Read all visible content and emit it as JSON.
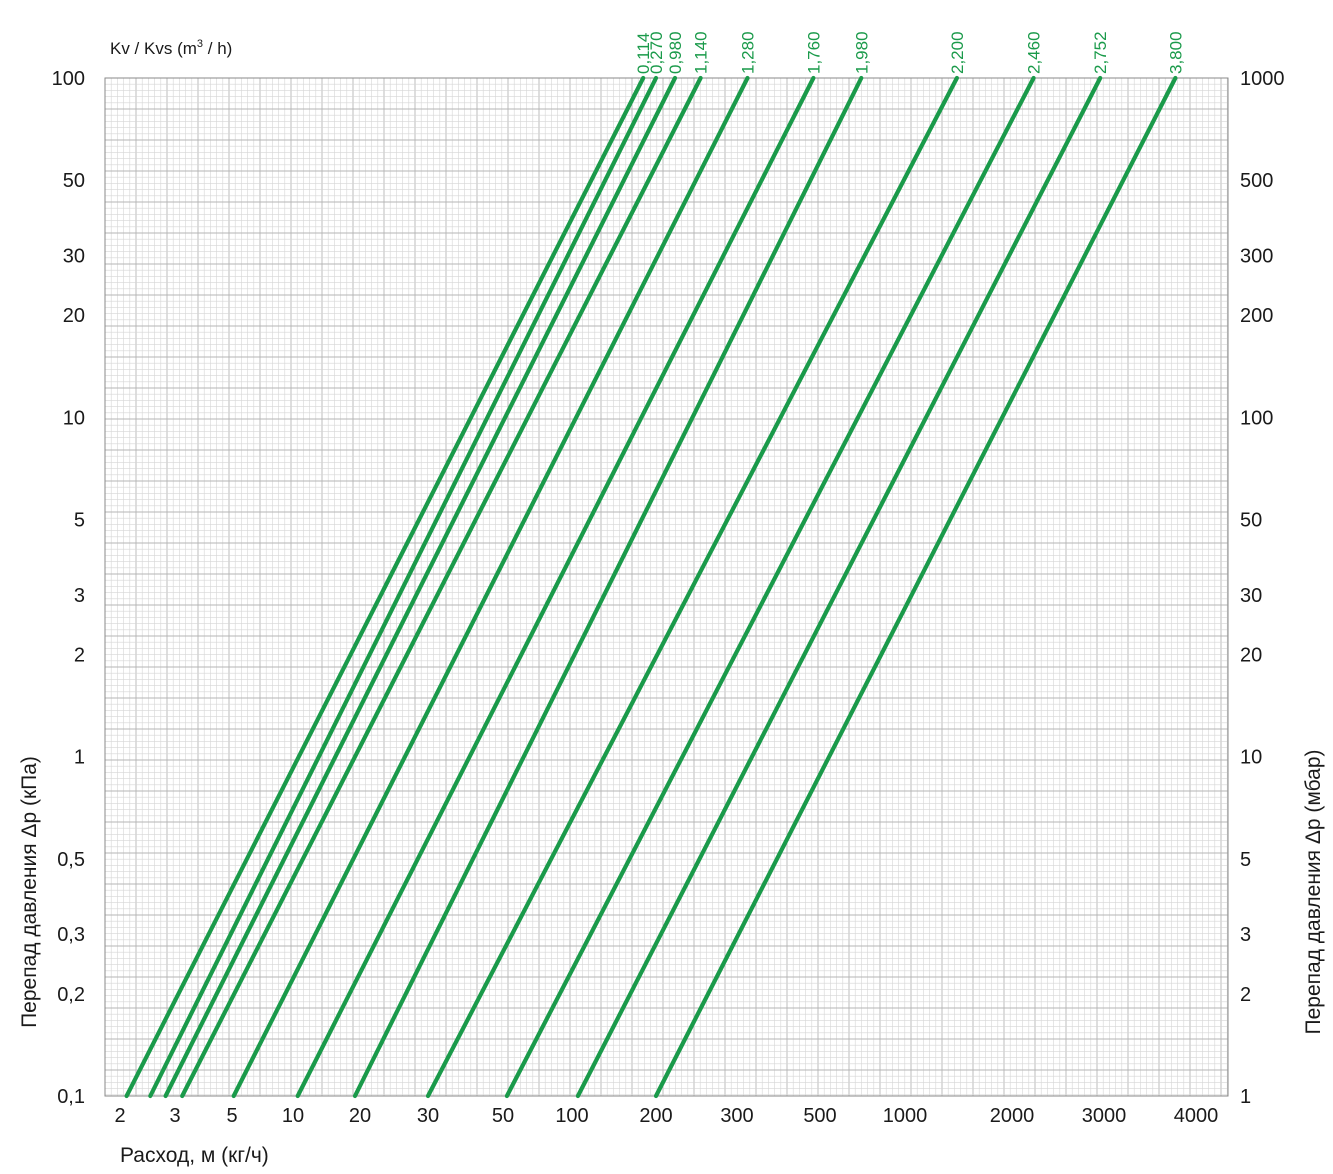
{
  "chart_data": {
    "type": "line",
    "title": "",
    "kv_header": {
      "prefix": "Kv / Kvs (m",
      "sup": "3",
      "suffix": " / h)"
    },
    "xlabel": "Расход, м (кг/ч)",
    "ylabel_left": "Перепад давления Δр (кПа)",
    "ylabel_right": "Перепад давления Δр (мбар)",
    "x_scale": "log",
    "y_scale": "log",
    "grid": true,
    "line_color": "#1a9a4a",
    "grid_color": "#c8c8c8",
    "y_ticks_left": [
      {
        "value": 0.1,
        "label": "0,1"
      },
      {
        "value": 0.2,
        "label": "0,2"
      },
      {
        "value": 0.3,
        "label": "0,3"
      },
      {
        "value": 0.5,
        "label": "0,5"
      },
      {
        "value": 1,
        "label": "1"
      },
      {
        "value": 2,
        "label": "2"
      },
      {
        "value": 3,
        "label": "3"
      },
      {
        "value": 5,
        "label": "5"
      },
      {
        "value": 10,
        "label": "10"
      },
      {
        "value": 20,
        "label": "20"
      },
      {
        "value": 30,
        "label": "30"
      },
      {
        "value": 50,
        "label": "50"
      },
      {
        "value": 100,
        "label": "100"
      }
    ],
    "y_ticks_right": [
      {
        "value": 0.1,
        "label": "1"
      },
      {
        "value": 0.2,
        "label": "2"
      },
      {
        "value": 0.3,
        "label": "3"
      },
      {
        "value": 0.5,
        "label": "5"
      },
      {
        "value": 1,
        "label": "10"
      },
      {
        "value": 2,
        "label": "20"
      },
      {
        "value": 3,
        "label": "30"
      },
      {
        "value": 5,
        "label": "50"
      },
      {
        "value": 10,
        "label": "100"
      },
      {
        "value": 20,
        "label": "200"
      },
      {
        "value": 30,
        "label": "300"
      },
      {
        "value": 50,
        "label": "500"
      },
      {
        "value": 100,
        "label": "1000"
      }
    ],
    "x_ticks": [
      {
        "value": 2,
        "label": "2"
      },
      {
        "value": 3,
        "label": "3"
      },
      {
        "value": 5,
        "label": "5"
      },
      {
        "value": 10,
        "label": "10"
      },
      {
        "value": 20,
        "label": "20"
      },
      {
        "value": 30,
        "label": "30"
      },
      {
        "value": 50,
        "label": "50"
      },
      {
        "value": 100,
        "label": "100"
      },
      {
        "value": 200,
        "label": "200"
      },
      {
        "value": 300,
        "label": "300"
      },
      {
        "value": 500,
        "label": "500"
      },
      {
        "value": 1000,
        "label": "1000"
      },
      {
        "value": 2000,
        "label": "2000"
      },
      {
        "value": 3000,
        "label": "3000"
      },
      {
        "value": 4000,
        "label": "4000"
      }
    ],
    "series": [
      {
        "name": "0,114",
        "start": {
          "x": 2.1,
          "y": 0.1
        },
        "end": {
          "x": 180,
          "y": 100
        }
      },
      {
        "name": "0,270",
        "start": {
          "x": 2.5,
          "y": 0.1
        },
        "end": {
          "x": 200,
          "y": 100
        }
      },
      {
        "name": "0,980",
        "start": {
          "x": 2.8,
          "y": 0.1
        },
        "end": {
          "x": 220,
          "y": 100
        }
      },
      {
        "name": "1,140",
        "start": {
          "x": 3.2,
          "y": 0.1
        },
        "end": {
          "x": 250,
          "y": 100
        }
      },
      {
        "name": "1,280",
        "start": {
          "x": 5.1,
          "y": 0.1
        },
        "end": {
          "x": 320,
          "y": 100
        }
      },
      {
        "name": "1,760",
        "start": {
          "x": 10.5,
          "y": 0.1
        },
        "end": {
          "x": 480,
          "y": 100
        }
      },
      {
        "name": "1,980",
        "start": {
          "x": 19,
          "y": 0.1
        },
        "end": {
          "x": 700,
          "y": 100
        }
      },
      {
        "name": "2,200",
        "start": {
          "x": 30,
          "y": 0.1
        },
        "end": {
          "x": 1400,
          "y": 100
        }
      },
      {
        "name": "2,460",
        "start": {
          "x": 52,
          "y": 0.1
        },
        "end": {
          "x": 2200,
          "y": 100
        }
      },
      {
        "name": "2,752",
        "start": {
          "x": 105,
          "y": 0.1
        },
        "end": {
          "x": 2950,
          "y": 100
        }
      },
      {
        "name": "3,800",
        "start": {
          "x": 200,
          "y": 0.1
        },
        "end": {
          "x": 3750,
          "y": 100
        }
      }
    ]
  }
}
